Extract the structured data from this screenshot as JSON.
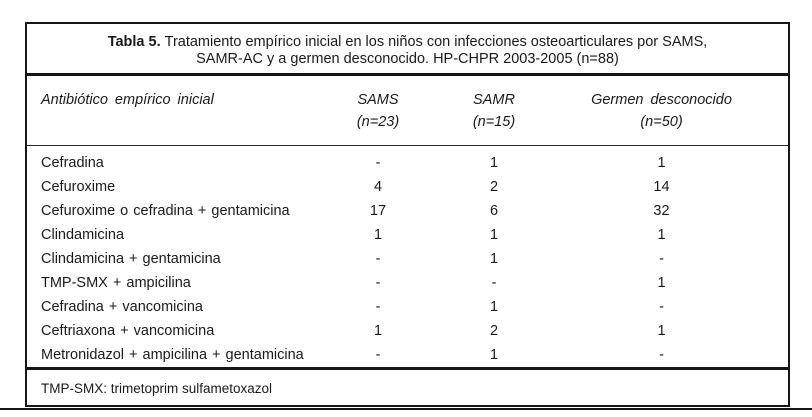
{
  "title": {
    "label": "Tabla 5.",
    "line1": "Tratamiento empírico inicial en los niños con infecciones osteoarticulares por SAMS,",
    "line2": "SAMR-AC y a germen desconocido. HP-CHPR 2003-2005  (n=88)"
  },
  "columns": {
    "antibiotic": "Antibiótico empírico inicial",
    "groups": [
      {
        "name": "SAMS",
        "n": "(n=23)"
      },
      {
        "name": "SAMR",
        "n": "(n=15)"
      },
      {
        "name": "Germen desconocido",
        "n": "(n=50)"
      }
    ]
  },
  "rows": [
    {
      "name": "Cefradina",
      "sams": "-",
      "samr": "1",
      "germen": "1"
    },
    {
      "name": "Cefuroxime",
      "sams": "4",
      "samr": "2",
      "germen": "14"
    },
    {
      "name": "Cefuroxime o cefradina + gentamicina",
      "sams": "17",
      "samr": "6",
      "germen": "32"
    },
    {
      "name": "Clindamicina",
      "sams": "1",
      "samr": "1",
      "germen": "1"
    },
    {
      "name": "Clindamicina + gentamicina",
      "sams": "-",
      "samr": "1",
      "germen": "-"
    },
    {
      "name": "TMP-SMX + ampicilina",
      "sams": "-",
      "samr": "-",
      "germen": "1"
    },
    {
      "name": "Cefradina + vancomicina",
      "sams": "-",
      "samr": "1",
      "germen": "-"
    },
    {
      "name": "Ceftriaxona + vancomicina",
      "sams": "1",
      "samr": "2",
      "germen": "1"
    },
    {
      "name": "Metronidazol + ampicilina + gentamicina",
      "sams": "-",
      "samr": "1",
      "germen": "-"
    }
  ],
  "footnote": "TMP-SMX: trimetoprim sulfametoxazol",
  "colors": {
    "text": "#1a1a1a",
    "border": "#161616",
    "background": "#ffffff"
  }
}
